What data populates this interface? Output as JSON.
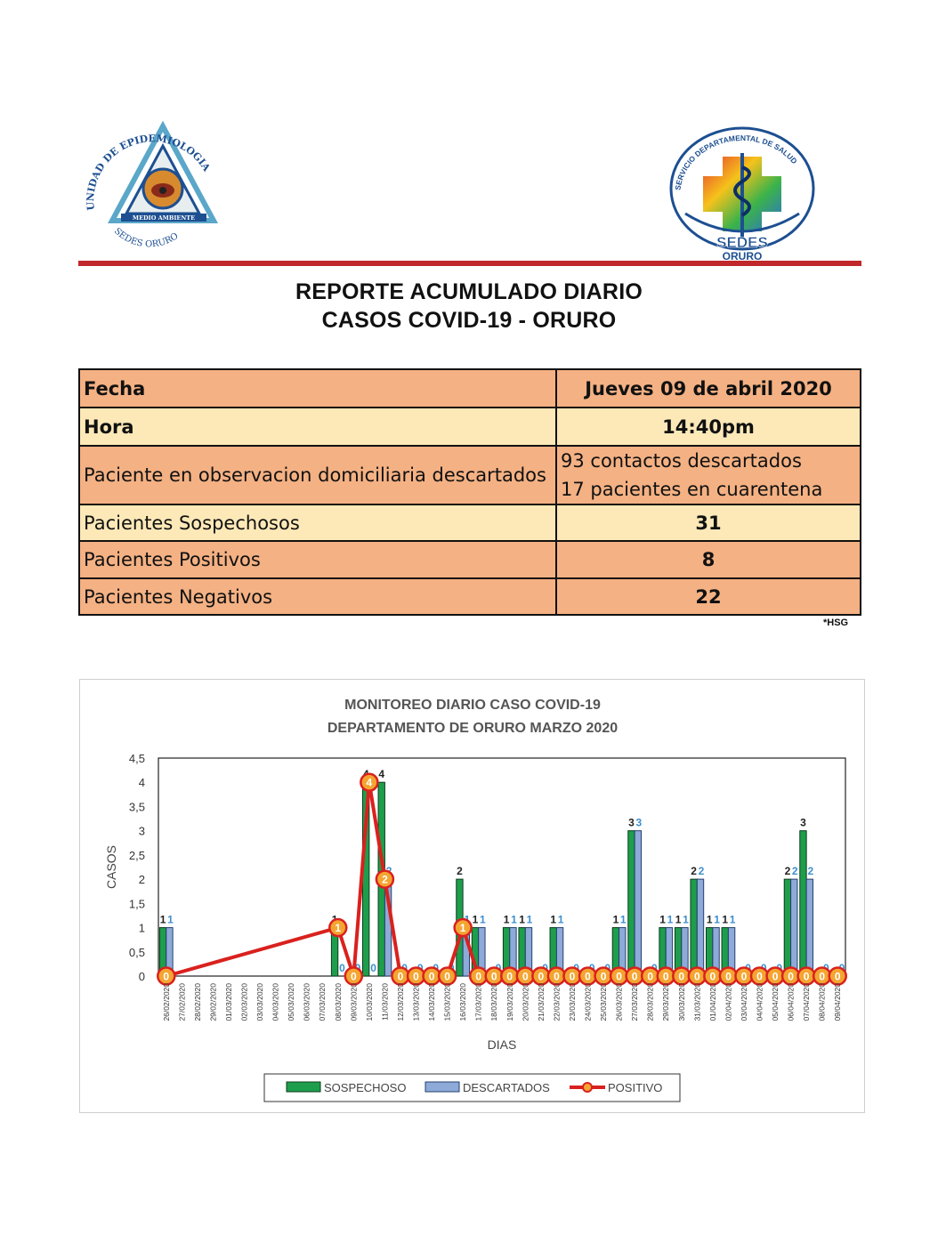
{
  "header": {
    "logo_left_text": "UNIDAD DE EPIDEMIOLOGIA · MEDIO AMBIENTE · SEDES ORURO",
    "logo_right_text": "SERVICIO DEPARTAMENTAL DE SALUD · SEDES ORURO",
    "colors": {
      "rule": "#c0282b"
    }
  },
  "report": {
    "title_line1": "REPORTE ACUMULADO DIARIO",
    "title_line2": "CASOS COVID-19 - ORURO"
  },
  "table": {
    "rows": [
      {
        "label": "Fecha",
        "value": "Jueves 09 de abril 2020"
      },
      {
        "label": "Hora",
        "value": "14:40pm"
      },
      {
        "label": "Paciente en observacion domiciliaria descartados",
        "value_line1": "93 contactos descartados",
        "value_line2": "17 pacientes en cuarentena"
      },
      {
        "label": "Pacientes Sospechosos",
        "value": "31"
      },
      {
        "label": "Pacientes Positivos",
        "value": "8"
      },
      {
        "label": "Pacientes Negativos",
        "value": "22"
      }
    ],
    "note": "*HSG",
    "colors": {
      "peach": "#f4b183",
      "cream": "#fde9b8"
    }
  },
  "chart_data": {
    "type": "bar",
    "title": "MONITOREO DIARIO CASO COVID-19",
    "subtitle": "DEPARTAMENTO DE ORURO MARZO 2020",
    "xlabel": "DIAS",
    "ylabel": "CASOS",
    "ylim": [
      0,
      4.5
    ],
    "yticks": [
      "0",
      "0,5",
      "1",
      "1,5",
      "2",
      "2,5",
      "3",
      "3,5",
      "4",
      "4,5"
    ],
    "grid": false,
    "legend_position": "bottom",
    "categories": [
      "26/02/2020",
      "27/02/2020",
      "28/02/2020",
      "29/02/2020",
      "01/03/2020",
      "02/03/2020",
      "03/03/2020",
      "04/03/2020",
      "05/03/2020",
      "06/03/2020",
      "07/03/2020",
      "08/03/2020",
      "09/03/2020",
      "10/03/2020",
      "11/03/2020",
      "12/03/2020",
      "13/03/2020",
      "14/03/2020",
      "15/03/2020",
      "16/03/2020",
      "17/03/2020",
      "18/03/2020",
      "19/03/2020",
      "20/03/2020",
      "21/03/2020",
      "22/03/2020",
      "23/03/2020",
      "24/03/2020",
      "25/03/2020",
      "26/03/2020",
      "27/03/2020",
      "28/03/2020",
      "29/03/2020",
      "30/03/2020",
      "31/03/2020",
      "01/04/2020",
      "02/04/2020",
      "03/04/2020",
      "04/04/2020",
      "05/04/2020",
      "06/04/2020",
      "07/04/2020",
      "08/04/2020",
      "09/04/2020"
    ],
    "series": [
      {
        "name": "SOSPECHOSO",
        "kind": "bar",
        "color": "#1e9e4c",
        "values": [
          1,
          null,
          null,
          null,
          null,
          null,
          null,
          null,
          null,
          null,
          null,
          1,
          0,
          4,
          4,
          0,
          0,
          0,
          0,
          2,
          1,
          0,
          1,
          1,
          0,
          1,
          0,
          0,
          0,
          1,
          3,
          0,
          1,
          1,
          2,
          1,
          1,
          0,
          0,
          0,
          2,
          3,
          0,
          0
        ]
      },
      {
        "name": "DESCARTADOS",
        "kind": "bar",
        "color": "#8eaad8",
        "values": [
          1,
          null,
          null,
          null,
          null,
          null,
          null,
          null,
          null,
          null,
          null,
          0,
          0,
          0,
          2,
          0,
          0,
          0,
          0,
          1,
          1,
          0,
          1,
          1,
          0,
          1,
          0,
          0,
          0,
          1,
          3,
          0,
          1,
          1,
          2,
          1,
          1,
          0,
          0,
          0,
          2,
          2,
          0,
          0
        ]
      },
      {
        "name": "POSITIVO",
        "kind": "line",
        "color": "#d9211e",
        "values": [
          0,
          null,
          null,
          null,
          null,
          null,
          null,
          null,
          null,
          null,
          null,
          1,
          0,
          4,
          2,
          0,
          0,
          0,
          0,
          1,
          0,
          0,
          0,
          0,
          0,
          0,
          0,
          0,
          0,
          0,
          0,
          0,
          0,
          0,
          0,
          0,
          0,
          0,
          0,
          0,
          0,
          0,
          0,
          0
        ]
      }
    ]
  }
}
